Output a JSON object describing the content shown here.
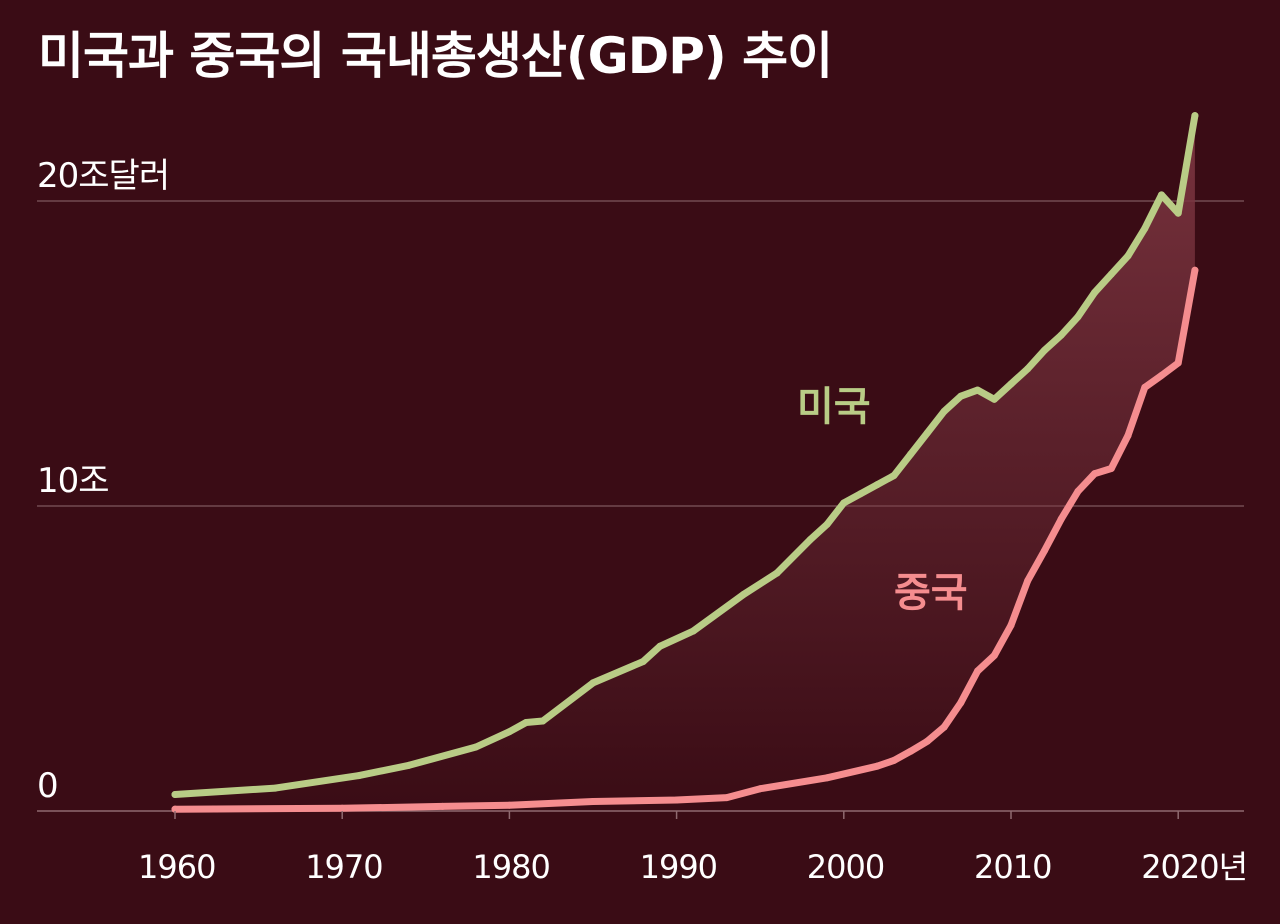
{
  "title": "미국과 중국의 국내총생산(GDP) 추이",
  "colors": {
    "background": "#3a0c15",
    "gridline": "#8f6a70",
    "fill_top": "#7a343f",
    "us": "#b9cc86",
    "china": "#f58d8f"
  },
  "chart_data": {
    "type": "line",
    "title": "미국과 중국의 국내총생산(GDP) 추이",
    "xlabel": "",
    "ylabel": "",
    "xlim": [
      1952,
      2025
    ],
    "ylim": [
      0,
      20
    ],
    "x_ticks": [
      {
        "value": 1960,
        "label": "1960"
      },
      {
        "value": 1970,
        "label": "1970"
      },
      {
        "value": 1980,
        "label": "1980"
      },
      {
        "value": 1990,
        "label": "1990"
      },
      {
        "value": 2000,
        "label": "2000"
      },
      {
        "value": 2010,
        "label": "2010"
      },
      {
        "value": 2020,
        "label": "2020년"
      }
    ],
    "y_ticks": [
      {
        "value": 0,
        "label": "0"
      },
      {
        "value": 10,
        "label": "10조"
      },
      {
        "value": 20,
        "label": "20조달러"
      }
    ],
    "grid": true,
    "legend": "inline labels",
    "series": [
      {
        "name": "미국",
        "color": "#b9cc86",
        "x": [
          1960,
          1966,
          1971,
          1974,
          1978,
          1980,
          1981,
          1982,
          1985,
          1988,
          1989,
          1991,
          1994,
          1996,
          1998,
          1999,
          2000,
          2001,
          2002,
          2003,
          2004,
          2005,
          2006,
          2007,
          2008,
          2009,
          2010,
          2011,
          2012,
          2013,
          2014,
          2015,
          2016,
          2017,
          2018,
          2019,
          2020,
          2021
        ],
        "y": [
          0.54,
          0.75,
          1.16,
          1.5,
          2.1,
          2.6,
          2.9,
          2.95,
          4.2,
          4.9,
          5.4,
          5.9,
          7.1,
          7.8,
          8.9,
          9.4,
          10.1,
          10.4,
          10.7,
          11.0,
          11.7,
          12.4,
          13.1,
          13.6,
          13.8,
          13.5,
          14.0,
          14.5,
          15.1,
          15.6,
          16.2,
          17.0,
          17.6,
          18.2,
          19.1,
          20.2,
          19.6,
          22.8
        ]
      },
      {
        "name": "중국",
        "color": "#f58d8f",
        "x": [
          1960,
          1970,
          1976,
          1980,
          1985,
          1990,
          1993,
          1995,
          1999,
          2002,
          2003,
          2004,
          2005,
          2006,
          2007,
          2008,
          2009,
          2010,
          2011,
          2012,
          2013,
          2014,
          2015,
          2016,
          2017,
          2018,
          2019,
          2020,
          2021
        ],
        "y": [
          0.06,
          0.09,
          0.15,
          0.19,
          0.31,
          0.36,
          0.44,
          0.73,
          1.09,
          1.47,
          1.66,
          1.96,
          2.29,
          2.75,
          3.55,
          4.59,
          5.1,
          6.09,
          7.55,
          8.53,
          9.57,
          10.48,
          11.06,
          11.23,
          12.31,
          13.89,
          14.28,
          14.69,
          17.73
        ]
      }
    ]
  }
}
